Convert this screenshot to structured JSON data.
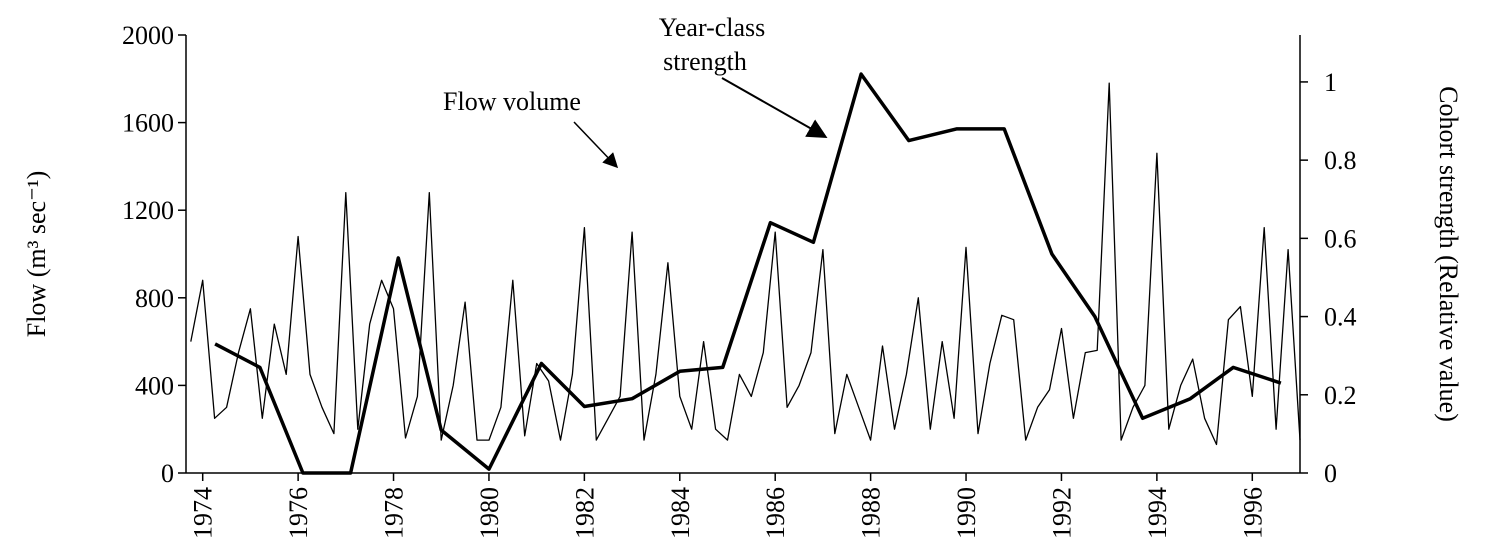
{
  "chart_data": {
    "type": "line",
    "ylabel": "Flow (m³ sec⁻¹)",
    "y2label": "Cohort strength (Relative value)",
    "annotations": [
      "Year-class",
      "strength",
      "Flow volume"
    ],
    "xlim": [
      1973.65,
      1997.0
    ],
    "xticks": [
      {
        "value": 1974,
        "label": "1974"
      },
      {
        "value": 1976,
        "label": "1976"
      },
      {
        "value": 1978,
        "label": "1978"
      },
      {
        "value": 1980,
        "label": "1980"
      },
      {
        "value": 1982,
        "label": "1982"
      },
      {
        "value": 1984,
        "label": "1984"
      },
      {
        "value": 1986,
        "label": "1986"
      },
      {
        "value": 1988,
        "label": "1988"
      },
      {
        "value": 1990,
        "label": "1990"
      },
      {
        "value": 1992,
        "label": "1992"
      },
      {
        "value": 1994,
        "label": "1994"
      },
      {
        "value": 1996,
        "label": "1996"
      }
    ],
    "ylim": [
      0,
      2000
    ],
    "yticks": [
      0,
      400,
      800,
      1200,
      1600,
      2000
    ],
    "y2lim": [
      0,
      1.12
    ],
    "y2ticks": [
      0,
      0.2,
      0.4,
      0.6,
      0.8,
      1
    ],
    "series": [
      {
        "name": "Flow volume",
        "color": "#000000",
        "axis": "y",
        "x": [
          1973.75,
          1974,
          1974.25,
          1974.5,
          1974.75,
          1975,
          1975.25,
          1975.5,
          1975.75,
          1976,
          1976.25,
          1976.5,
          1976.75,
          1977,
          1977.25,
          1977.5,
          1977.75,
          1978,
          1978.25,
          1978.5,
          1978.75,
          1979,
          1979.25,
          1979.5,
          1979.75,
          1980,
          1980.25,
          1980.5,
          1980.75,
          1981,
          1981.25,
          1981.5,
          1981.75,
          1982,
          1982.25,
          1982.5,
          1982.75,
          1983,
          1983.25,
          1983.5,
          1983.75,
          1984,
          1984.25,
          1984.5,
          1984.75,
          1985,
          1985.25,
          1985.5,
          1985.75,
          1986,
          1986.25,
          1986.5,
          1986.75,
          1987,
          1987.25,
          1987.5,
          1987.75,
          1988,
          1988.25,
          1988.5,
          1988.75,
          1989,
          1989.25,
          1989.5,
          1989.75,
          1990,
          1990.25,
          1990.5,
          1990.75,
          1991,
          1991.25,
          1991.5,
          1991.75,
          1992,
          1992.25,
          1992.5,
          1992.75,
          1993,
          1993.25,
          1993.5,
          1993.75,
          1994,
          1994.25,
          1994.5,
          1994.75,
          1995,
          1995.25,
          1995.5,
          1995.75,
          1996,
          1996.25,
          1996.5,
          1996.75,
          1997
        ],
        "values": [
          600,
          880,
          250,
          300,
          550,
          750,
          250,
          680,
          450,
          1080,
          450,
          300,
          180,
          1280,
          200,
          680,
          880,
          750,
          160,
          350,
          1280,
          150,
          400,
          780,
          150,
          150,
          300,
          880,
          170,
          500,
          420,
          150,
          450,
          1120,
          150,
          250,
          350,
          1100,
          150,
          450,
          960,
          350,
          200,
          600,
          200,
          150,
          450,
          350,
          550,
          1100,
          300,
          400,
          550,
          1020,
          180,
          450,
          300,
          150,
          580,
          200,
          450,
          800,
          200,
          600,
          250,
          1030,
          180,
          500,
          720,
          700,
          150,
          300,
          380,
          660,
          250,
          550,
          560,
          1780,
          150,
          300,
          400,
          1460,
          200,
          400,
          520,
          250,
          130,
          700,
          760,
          350,
          1120,
          200,
          1020,
          150
        ]
      },
      {
        "name": "Year-class strength",
        "color": "#000000",
        "axis": "y2",
        "x": [
          1974.26,
          1975.2,
          1976.1,
          1977.1,
          1978.1,
          1979.0,
          1980.0,
          1981.1,
          1982.0,
          1983.0,
          1984.0,
          1984.9,
          1985.9,
          1986.8,
          1987.8,
          1988.8,
          1989.8,
          1990.8,
          1991.8,
          1992.7,
          1993.7,
          1994.7,
          1995.6,
          1996.6
        ],
        "values": [
          0.33,
          0.27,
          0,
          0,
          0.55,
          0.11,
          0.01,
          0.28,
          0.17,
          0.19,
          0.26,
          0.27,
          0.64,
          0.59,
          1.02,
          0.85,
          0.88,
          0.88,
          0.56,
          0.4,
          0.14,
          0.19,
          0.27,
          0.23
        ]
      }
    ]
  }
}
